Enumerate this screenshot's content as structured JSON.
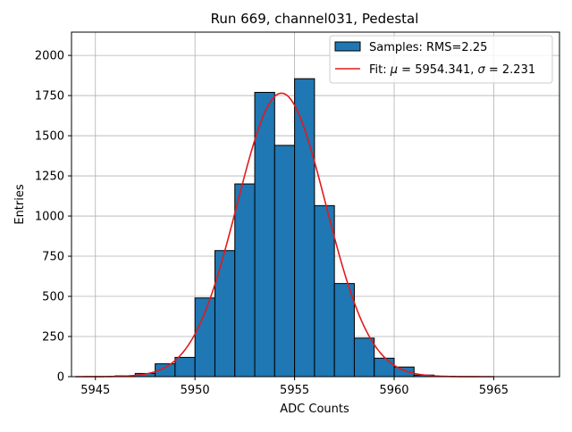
{
  "chart_data": {
    "type": "bar",
    "title": "Run 669, channel031, Pedestal",
    "xlabel": "ADC Counts",
    "ylabel": "Entries",
    "xlim": [
      5943.8,
      5968.3
    ],
    "ylim": [
      0,
      2145
    ],
    "grid": true,
    "legend_position": "top-right",
    "xticks": [
      5945,
      5950,
      5955,
      5960,
      5965
    ],
    "yticks": [
      0,
      250,
      500,
      750,
      1000,
      1250,
      1500,
      1750,
      2000
    ],
    "histogram": {
      "name": "Samples: RMS=2.25",
      "color": "#1f77b4",
      "edgecolor": "#000000",
      "bins": [
        {
          "x0": 5946,
          "x1": 5947,
          "value": 5
        },
        {
          "x0": 5947,
          "x1": 5948,
          "value": 20
        },
        {
          "x0": 5948,
          "x1": 5949,
          "value": 80
        },
        {
          "x0": 5949,
          "x1": 5950,
          "value": 120
        },
        {
          "x0": 5950,
          "x1": 5951,
          "value": 490
        },
        {
          "x0": 5951,
          "x1": 5952,
          "value": 785
        },
        {
          "x0": 5952,
          "x1": 5953,
          "value": 1200
        },
        {
          "x0": 5953,
          "x1": 5954,
          "value": 1770
        },
        {
          "x0": 5954,
          "x1": 5955,
          "value": 1440
        },
        {
          "x0": 5955,
          "x1": 5956,
          "value": 1855
        },
        {
          "x0": 5956,
          "x1": 5957,
          "value": 1065
        },
        {
          "x0": 5957,
          "x1": 5958,
          "value": 580
        },
        {
          "x0": 5958,
          "x1": 5959,
          "value": 240
        },
        {
          "x0": 5959,
          "x1": 5960,
          "value": 115
        },
        {
          "x0": 5960,
          "x1": 5961,
          "value": 60
        },
        {
          "x0": 5961,
          "x1": 5962,
          "value": 10
        }
      ]
    },
    "fit": {
      "name": "Fit: μ = 5954.341, σ = 2.231",
      "label_parts": [
        "Fit: ",
        "μ",
        " = 5954.341, ",
        "σ",
        " = 2.231"
      ],
      "color": "#e31a1c",
      "mu": 5954.341,
      "sigma": 2.231,
      "amplitude": 1765,
      "x_range": [
        5944,
        5965
      ]
    }
  }
}
